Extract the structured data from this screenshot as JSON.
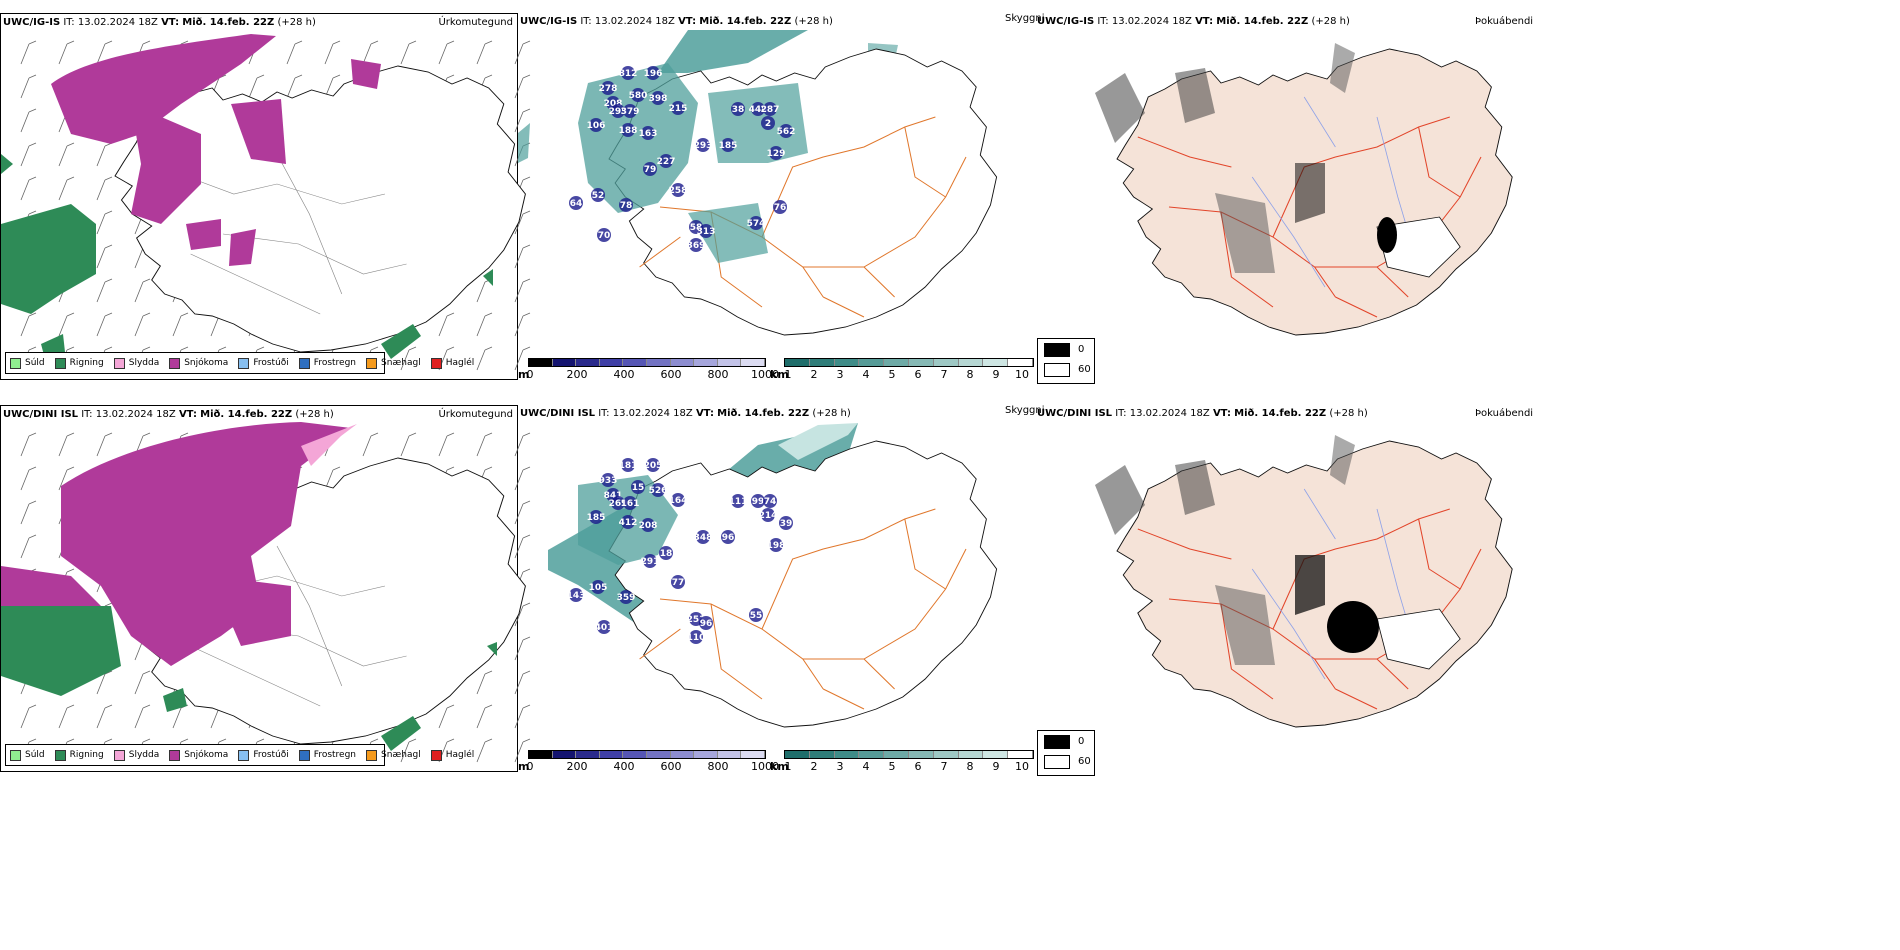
{
  "rows": [
    {
      "model": "UWC/IG-IS",
      "it_label": "IT:",
      "it_value": "13.02.2024 18Z",
      "vt_label": "VT:",
      "vt_value": "Mið. 14.feb. 22Z",
      "lead": "(+28 h)",
      "precip_label": "Úrkomutegund",
      "cloud_label": "Skyggni",
      "fog_label": "Þokuábendi",
      "peaks": [
        "812",
        "196",
        "278",
        "580",
        "208",
        "398",
        "295",
        "379",
        "215",
        "106",
        "188",
        "163",
        "227",
        "79",
        "293",
        "185",
        "38",
        "448",
        "287",
        "2",
        "562",
        "129",
        "258",
        "52",
        "64",
        "78",
        "70",
        "58",
        "313",
        "369",
        "574",
        "76"
      ]
    },
    {
      "model": "UWC/DINI ISL",
      "it_label": "IT:",
      "it_value": "13.02.2024 18Z",
      "vt_label": "VT:",
      "vt_value": "Mið. 14.feb. 22Z",
      "lead": "(+28 h)",
      "precip_label": "Úrkomutegund",
      "cloud_label": "Skyggni",
      "fog_label": "Þokuábendi",
      "peaks": [
        "181",
        "205",
        "933",
        "15",
        "841",
        "526",
        "269",
        "161",
        "164",
        "185",
        "412",
        "208",
        "18",
        "291",
        "348",
        "96",
        "111",
        "99",
        "74",
        "214",
        "39",
        "198",
        "77",
        "105",
        "143",
        "359",
        "401",
        "251",
        "96",
        "110",
        "55"
      ]
    }
  ],
  "precip_legend": [
    {
      "label": "Súld",
      "color": "#90ee90"
    },
    {
      "label": "Rigning",
      "color": "#2e8b57"
    },
    {
      "label": "Slydda",
      "color": "#f4a6d7"
    },
    {
      "label": "Snjókoma",
      "color": "#b03a9a"
    },
    {
      "label": "Frostúði",
      "color": "#87bff0"
    },
    {
      "label": "Frostregn",
      "color": "#2f6fc0"
    },
    {
      "label": "Snæhagl",
      "color": "#f59a1c"
    },
    {
      "label": "Haglél",
      "color": "#e02020"
    }
  ],
  "cloud_bar_m": {
    "unit": "m",
    "ticks": [
      "0",
      "200",
      "400",
      "600",
      "800",
      "1000"
    ]
  },
  "cloud_bar_km": {
    "unit": "km",
    "ticks": [
      "1",
      "2",
      "3",
      "4",
      "5",
      "6",
      "7",
      "8",
      "9",
      "10"
    ]
  },
  "fog_legend": {
    "top": "0",
    "bottom": "60"
  },
  "colors": {
    "snow": "#b03a9a",
    "rain": "#2e8b57",
    "teal": "#4f9f9b",
    "navy": "#1a1a8c",
    "road": "#e0772c",
    "land": "#f5e3d8",
    "redroad": "#e2452a",
    "river": "#8fa2e8"
  }
}
